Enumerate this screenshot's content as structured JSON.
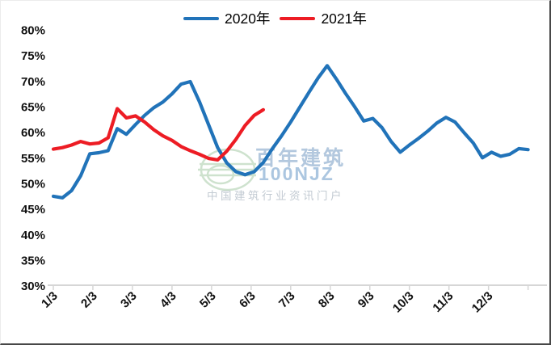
{
  "watermark": {
    "brand_cn": "百年建筑",
    "brand_en": "100NJZ",
    "tagline": "中国建筑行业资讯门户"
  },
  "chart_data": {
    "type": "line",
    "title": "",
    "x_tick_labels": [
      "1/3",
      "2/3",
      "3/3",
      "4/3",
      "5/3",
      "6/3",
      "7/3",
      "8/3",
      "9/3",
      "10/3",
      "11/3",
      "12/3"
    ],
    "x_frequency": "weekly",
    "ylabel": "",
    "xlabel": "",
    "ylim": [
      30,
      80
    ],
    "y_ticks_percent": [
      80,
      75,
      70,
      65,
      60,
      55,
      50,
      45,
      40,
      35,
      30
    ],
    "y_tick_labels": [
      "80%",
      "75%",
      "70%",
      "65%",
      "60%",
      "55%",
      "50%",
      "45%",
      "40%",
      "35%",
      "30%"
    ],
    "grid": false,
    "legend_position": "top-center",
    "axis_color": "#d6d6d6",
    "tick_label_color": "#111111",
    "series": [
      {
        "name": "2020年",
        "color": "#2173B9",
        "values": [
          47.5,
          47.2,
          48.6,
          51.5,
          55.8,
          56.0,
          56.4,
          60.7,
          59.6,
          61.5,
          63.3,
          64.8,
          65.9,
          67.5,
          69.4,
          69.9,
          66.0,
          61.5,
          57.0,
          54.0,
          52.3,
          51.7,
          52.3,
          54.1,
          56.8,
          59.3,
          62.0,
          64.9,
          67.8,
          70.6,
          73.0,
          70.4,
          67.6,
          65.0,
          62.2,
          62.7,
          60.9,
          58.2,
          56.1,
          57.5,
          58.8,
          60.2,
          61.8,
          62.9,
          62.0,
          59.9,
          57.9,
          55.0,
          56.1,
          55.3,
          55.7,
          56.8,
          56.6
        ]
      },
      {
        "name": "2021年",
        "color": "#ED1C24",
        "values": [
          56.7,
          57.0,
          57.5,
          58.2,
          57.7,
          57.9,
          58.9,
          64.6,
          62.8,
          63.2,
          62.0,
          60.5,
          59.3,
          58.4,
          57.2,
          56.4,
          55.7,
          54.9,
          54.6,
          56.3,
          58.6,
          61.3,
          63.3,
          64.4
        ]
      }
    ]
  }
}
